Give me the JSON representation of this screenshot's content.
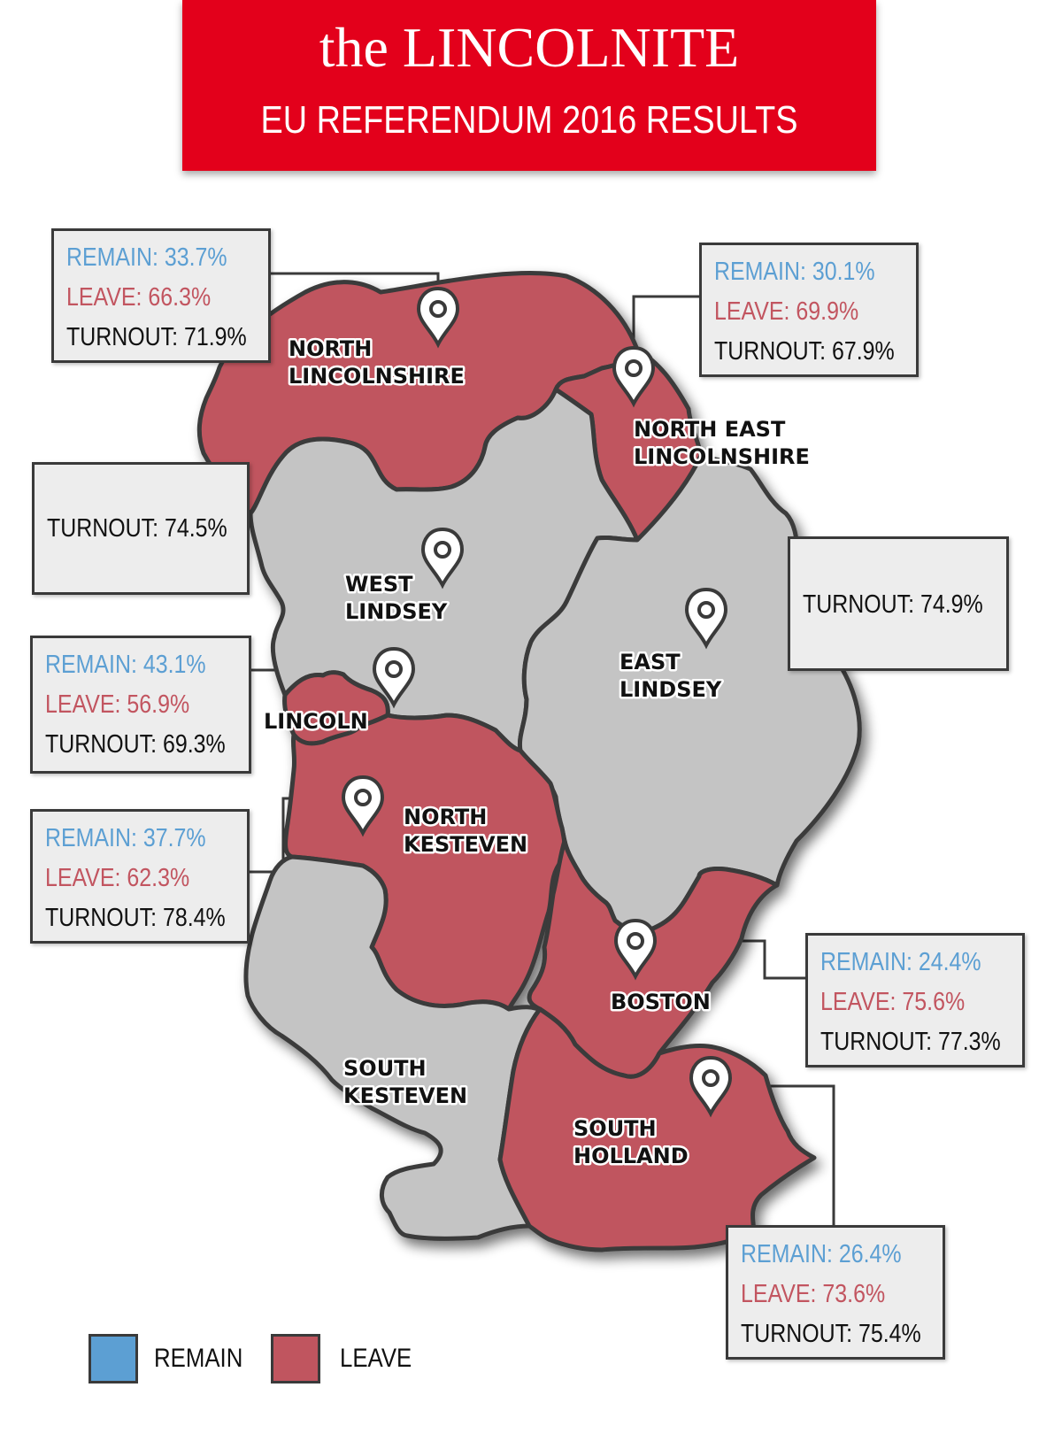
{
  "header": {
    "brand": "the LINCOLNITE",
    "subtitle": "EU REFERENDUM 2016 RESULTS"
  },
  "colors": {
    "remain": "#5c9fd3",
    "leave": "#c25560",
    "leave_fill": "#c0555f",
    "remain_fill": "#c4c4c4",
    "border": "#3a3a3a",
    "header_red": "#e3001b"
  },
  "regions": [
    {
      "id": "north-lincolnshire",
      "label_lines": [
        "NORTH",
        "LINCOLNSHIRE"
      ],
      "winner": "leave",
      "remain": "REMAIN: 33.7%",
      "leave": "LEAVE: 66.3%",
      "turnout": "TURNOUT: 71.9%"
    },
    {
      "id": "north-east-lincolnshire",
      "label_lines": [
        "NORTH EAST",
        "LINCOLNSHIRE"
      ],
      "winner": "leave",
      "remain": "REMAIN: 30.1%",
      "leave": "LEAVE: 69.9%",
      "turnout": "TURNOUT: 67.9%"
    },
    {
      "id": "west-lindsey",
      "label_lines": [
        "WEST",
        "LINDSEY"
      ],
      "winner": "none",
      "turnout": "TURNOUT: 74.5%"
    },
    {
      "id": "east-lindsey",
      "label_lines": [
        "EAST",
        "LINDSEY"
      ],
      "winner": "none",
      "turnout": "TURNOUT: 74.9%"
    },
    {
      "id": "lincoln",
      "label_lines": [
        "LINCOLN"
      ],
      "winner": "leave",
      "remain": "REMAIN: 43.1%",
      "leave": "LEAVE: 56.9%",
      "turnout": "TURNOUT: 69.3%"
    },
    {
      "id": "north-kesteven",
      "label_lines": [
        "NORTH",
        "KESTEVEN"
      ],
      "winner": "leave",
      "remain": "REMAIN: 37.7%",
      "leave": "LEAVE: 62.3%",
      "turnout": "TURNOUT: 78.4%"
    },
    {
      "id": "boston",
      "label_lines": [
        "BOSTON"
      ],
      "winner": "leave",
      "remain": "REMAIN: 24.4%",
      "leave": "LEAVE: 75.6%",
      "turnout": "TURNOUT: 77.3%"
    },
    {
      "id": "south-kesteven",
      "label_lines": [
        "SOUTH",
        "KESTEVEN"
      ],
      "winner": "none"
    },
    {
      "id": "south-holland",
      "label_lines": [
        "SOUTH",
        "HOLLAND"
      ],
      "winner": "leave",
      "remain": "REMAIN: 26.4%",
      "leave": "LEAVE: 73.6%",
      "turnout": "TURNOUT: 75.4%"
    }
  ],
  "legend": [
    {
      "label": "REMAIN",
      "color": "#5c9fd3"
    },
    {
      "label": "LEAVE",
      "color": "#c25560"
    }
  ],
  "icons": {
    "pin": "map-pin-icon"
  }
}
